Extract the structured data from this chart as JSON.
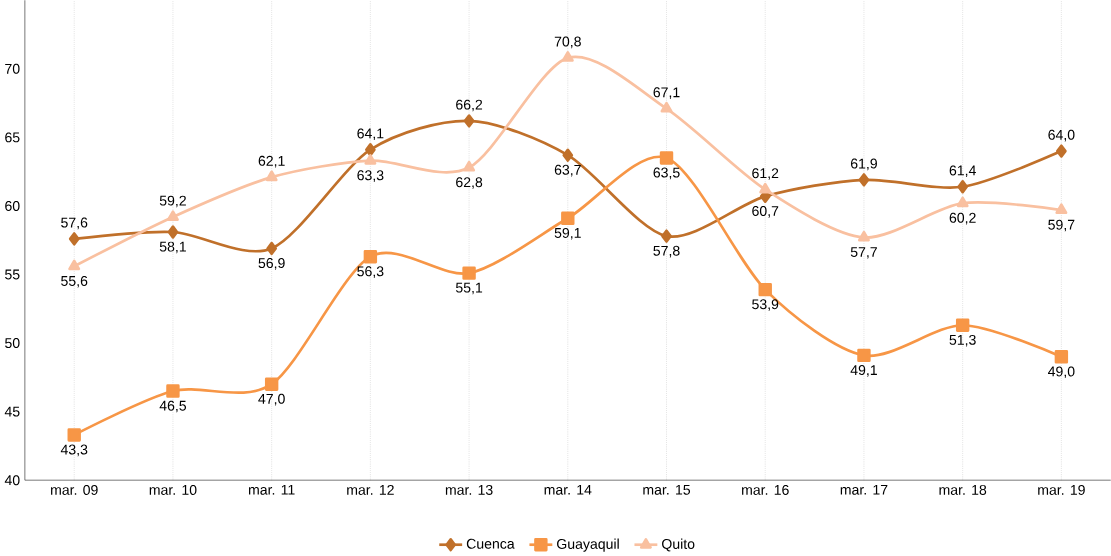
{
  "chart_data": {
    "type": "line",
    "categories": [
      "mar. 09",
      "mar. 10",
      "mar. 11",
      "mar. 12",
      "mar. 13",
      "mar. 14",
      "mar. 15",
      "mar. 16",
      "mar. 17",
      "mar. 18",
      "mar. 19"
    ],
    "series": [
      {
        "name": "Cuenca",
        "color": "#c0702a",
        "marker": "diamond",
        "values": [
          57.6,
          58.1,
          56.9,
          64.1,
          66.2,
          63.7,
          57.8,
          60.7,
          61.9,
          61.4,
          64.0
        ],
        "value_labels": [
          "57,6",
          "58,1",
          "56,9",
          "64,1",
          "66,2",
          "63,7",
          "57,8",
          "60,7",
          "61,9",
          "61,4",
          "64,0"
        ]
      },
      {
        "name": "Guayaquil",
        "color": "#f79646",
        "marker": "square",
        "values": [
          43.3,
          46.5,
          47.0,
          56.3,
          55.1,
          59.1,
          63.5,
          53.9,
          49.1,
          51.3,
          49.0
        ],
        "value_labels": [
          "43,3",
          "46,5",
          "47,0",
          "56,3",
          "55,1",
          "59,1",
          "63,5",
          "53,9",
          "49,1",
          "51,3",
          "49,0"
        ]
      },
      {
        "name": "Quito",
        "color": "#f9c0a0",
        "marker": "triangle",
        "values": [
          55.6,
          59.2,
          62.1,
          63.3,
          62.8,
          70.8,
          67.1,
          61.2,
          57.7,
          60.2,
          59.7
        ],
        "value_labels": [
          "55,6",
          "59,2",
          "62,1",
          "63,3",
          "62,8",
          "70,8",
          "67,1",
          "61,2",
          "57,7",
          "60,2",
          "59,7"
        ]
      }
    ],
    "ylim": [
      40,
      75
    ],
    "yticks": [
      40,
      45,
      50,
      55,
      60,
      65,
      70
    ],
    "grid": "x",
    "legend": "bottom",
    "line_style": "solid"
  }
}
